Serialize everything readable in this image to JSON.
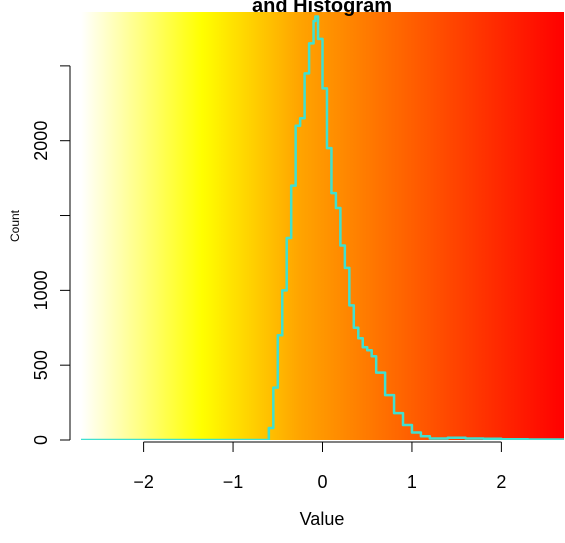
{
  "chart_data": {
    "type": "line",
    "title": "and Histogram",
    "xlabel": "Value",
    "ylabel": "Count",
    "xlim": [
      -2.7,
      2.7
    ],
    "ylim": [
      0,
      2860
    ],
    "x_ticks": [
      -2,
      -1,
      0,
      1,
      2
    ],
    "x_tick_labels": [
      "−2",
      "−1",
      "0",
      "1",
      "2"
    ],
    "y_ticks": [
      0,
      500,
      1000,
      1500,
      2000
    ],
    "y_tick_labels": [
      "0",
      "500",
      "1000",
      "",
      "2000"
    ],
    "background_gradient": [
      "#ffffff",
      "#ffff00",
      "#ffa500",
      "#ff0000"
    ],
    "series": [
      {
        "color": "#40e0d0",
        "x": [
          -2.7,
          -0.62,
          -0.6,
          -0.55,
          -0.5,
          -0.45,
          -0.4,
          -0.35,
          -0.3,
          -0.25,
          -0.2,
          -0.15,
          -0.1,
          -0.08,
          -0.05,
          0.0,
          0.05,
          0.1,
          0.15,
          0.2,
          0.25,
          0.3,
          0.35,
          0.4,
          0.45,
          0.5,
          0.55,
          0.6,
          0.7,
          0.8,
          0.9,
          1.0,
          1.1,
          1.2,
          1.4,
          1.6,
          1.8,
          2.0,
          2.3,
          2.7
        ],
        "y": [
          0,
          0,
          80,
          350,
          700,
          1000,
          1350,
          1700,
          2100,
          2150,
          2450,
          2650,
          2800,
          2830,
          2680,
          2350,
          1950,
          1650,
          1550,
          1300,
          1150,
          900,
          750,
          680,
          620,
          600,
          560,
          450,
          300,
          180,
          100,
          50,
          25,
          10,
          15,
          10,
          8,
          5,
          3,
          2
        ]
      }
    ]
  }
}
